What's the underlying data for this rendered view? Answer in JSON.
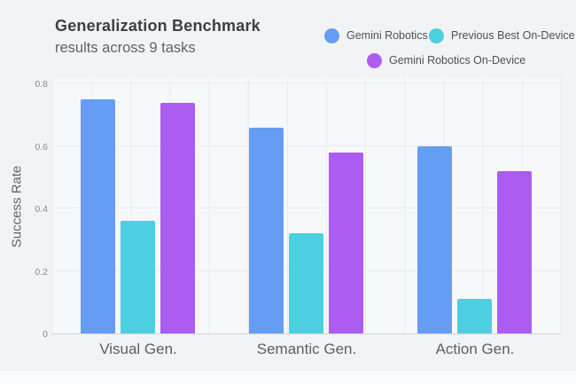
{
  "header": {
    "title": "Generalization Benchmark",
    "subtitle": "results across 9 tasks"
  },
  "chart_data": {
    "type": "bar",
    "title": "Generalization Benchmark results across 9 tasks",
    "categories": [
      "Visual Gen.",
      "Semantic Gen.",
      "Action Gen."
    ],
    "series": [
      {
        "name": "Gemini Robotics",
        "color": "#669df4",
        "values": [
          0.75,
          0.66,
          0.6
        ]
      },
      {
        "name": "Previous Best On-Device",
        "color": "#4dcfe2",
        "values": [
          0.36,
          0.32,
          0.11
        ]
      },
      {
        "name": "Gemini Robotics On-Device",
        "color": "#ad5cf2",
        "values": [
          0.74,
          0.58,
          0.52
        ]
      }
    ],
    "xlabel": "",
    "ylabel": "Success Rate",
    "ylim": [
      0,
      0.8
    ],
    "yticks": [
      0,
      0.2,
      0.4,
      0.6,
      0.8
    ],
    "ytick_labels": [
      "0",
      "0.2",
      "0.4",
      "0.6",
      "0.8"
    ],
    "grid": true,
    "legend_position": "top-right"
  },
  "colors": {
    "background": "#f2f3f5",
    "plot_background": "#f7f8fa",
    "gridline": "#e9ebef",
    "title_text": "#3c4043",
    "subtitle_text": "#5f6368"
  }
}
